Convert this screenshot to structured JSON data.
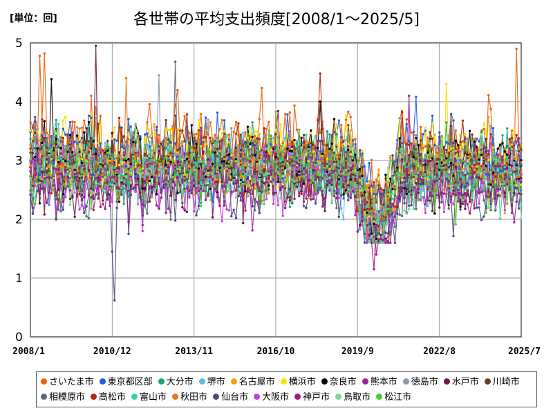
{
  "unit_label": "[単位：回]",
  "chart_data": {
    "type": "line",
    "title": "各世帯の平均支出頻度[2008/1～2025/5]",
    "xlabel": "",
    "ylabel": "",
    "ylim": [
      0,
      5
    ],
    "yticks": [
      "0",
      "1",
      "2",
      "3",
      "4",
      "5"
    ],
    "xticks": [
      "2008/1",
      "2010/12",
      "2013/11",
      "2016/10",
      "2019/9",
      "2022/8",
      "2025/7"
    ],
    "grid": true,
    "legend_position": "bottom",
    "series": [
      {
        "name": "さいたま市",
        "color": "#f0600a",
        "mean": 3.3,
        "highlights": [
          [
            4,
            4.78
          ],
          [
            6,
            4.82
          ],
          [
            208,
            4.9
          ]
        ]
      },
      {
        "name": "東京都区部",
        "color": "#1f5fe0",
        "mean": 3.2,
        "highlights": [
          [
            165,
            4.08
          ]
        ]
      },
      {
        "name": "大分市",
        "color": "#1aa879",
        "mean": 2.95,
        "highlights": []
      },
      {
        "name": "堺市",
        "color": "#5fb8e8",
        "mean": 2.9,
        "highlights": [
          [
            134,
            2.0
          ]
        ]
      },
      {
        "name": "名古屋市",
        "color": "#f5a300",
        "mean": 3.0,
        "highlights": []
      },
      {
        "name": "横浜市",
        "color": "#f5e300",
        "mean": 3.1,
        "highlights": [
          [
            178,
            4.3
          ]
        ]
      },
      {
        "name": "奈良市",
        "color": "#000000",
        "mean": 3.0,
        "highlights": [
          [
            9,
            4.38
          ],
          [
            124,
            4.0
          ]
        ]
      },
      {
        "name": "熊本市",
        "color": "#a020a0",
        "mean": 2.7,
        "highlights": [
          [
            148,
            1.4
          ],
          [
            162,
            4.1
          ]
        ]
      },
      {
        "name": "徳島市",
        "color": "#8898a8",
        "mean": 2.95,
        "highlights": [
          [
            55,
            4.45
          ]
        ]
      },
      {
        "name": "水戸市",
        "color": "#6a1b4d",
        "mean": 2.75,
        "highlights": [
          [
            28,
            4.95
          ]
        ]
      },
      {
        "name": "川崎市",
        "color": "#5a4030",
        "mean": 3.0,
        "highlights": []
      },
      {
        "name": "相模原市",
        "color": "#606878",
        "mean": 2.8,
        "highlights": [
          [
            62,
            4.68
          ]
        ]
      },
      {
        "name": "高松市",
        "color": "#b02a08",
        "mean": 3.05,
        "highlights": [
          [
            124,
            4.48
          ]
        ]
      },
      {
        "name": "富山市",
        "color": "#30d8a0",
        "mean": 2.9,
        "highlights": []
      },
      {
        "name": "秋田市",
        "color": "#e87820",
        "mean": 3.0,
        "highlights": [
          [
            41,
            4.4
          ]
        ]
      },
      {
        "name": "仙台市",
        "color": "#4a4a80",
        "mean": 2.6,
        "highlights": [
          [
            35,
            1.45
          ],
          [
            36,
            0.62
          ],
          [
            42,
            1.75
          ]
        ]
      },
      {
        "name": "大阪市",
        "color": "#c040e0",
        "mean": 2.7,
        "highlights": [
          [
            48,
            1.8
          ]
        ]
      },
      {
        "name": "神戸市",
        "color": "#a01880",
        "mean": 2.65,
        "highlights": [
          [
            147,
            1.15
          ]
        ]
      },
      {
        "name": "鳥取市",
        "color": "#80d890",
        "mean": 2.85,
        "highlights": []
      },
      {
        "name": "松江市",
        "color": "#50c828",
        "mean": 2.8,
        "highlights": []
      }
    ]
  }
}
